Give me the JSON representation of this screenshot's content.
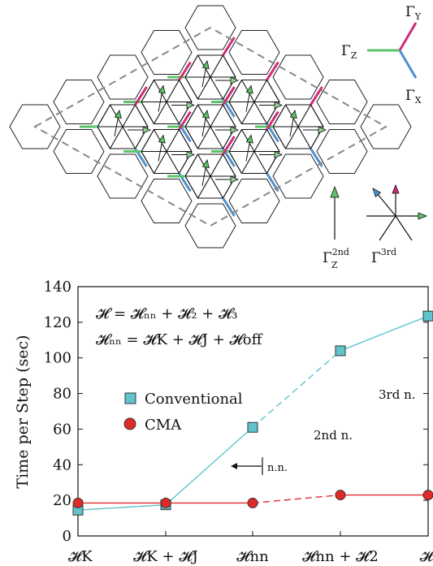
{
  "legend_bonds": {
    "x_label": "Γ",
    "x_sub": "X",
    "y_label": "Γ",
    "y_sub": "Y",
    "z_label": "Γ",
    "z_sub": "Z",
    "second_label": "Γ",
    "second_sub": "Z",
    "second_sup": "2nd",
    "third_label": "Γ",
    "third_sup": "3rd"
  },
  "colors": {
    "x_bond": "#4a90d0",
    "y_bond": "#d02a78",
    "z_bond": "#5cc46a",
    "conventional": "#5fc4cc",
    "cma": "#e02a2a"
  },
  "equations": {
    "line1": "𝓗 = 𝓗ₙₙ + 𝓗₂ + 𝓗₃",
    "line2": "𝓗ₙₙ = 𝓗K + 𝓗J + 𝓗off"
  },
  "annotations": {
    "nn": "n.n.",
    "second": "2nd n.",
    "third": "3rd n."
  },
  "chart_data": {
    "type": "line",
    "categories": [
      "𝓗K",
      "𝓗K + 𝓗J",
      "𝓗nn",
      "𝓗nn + 𝓗2",
      "𝓗"
    ],
    "ylabel": "Time per Step (sec)",
    "xlabel": "",
    "ylim": [
      0,
      140
    ],
    "yticks": [
      0,
      20,
      40,
      60,
      80,
      100,
      120,
      140
    ],
    "grid": false,
    "legend_position": "center-left",
    "series": [
      {
        "name": "Conventional",
        "values": [
          14.5,
          17.5,
          61,
          104,
          123.5
        ],
        "marker": "square"
      },
      {
        "name": "CMA",
        "values": [
          18.5,
          18.5,
          18.5,
          23,
          23
        ],
        "marker": "circle"
      }
    ]
  }
}
